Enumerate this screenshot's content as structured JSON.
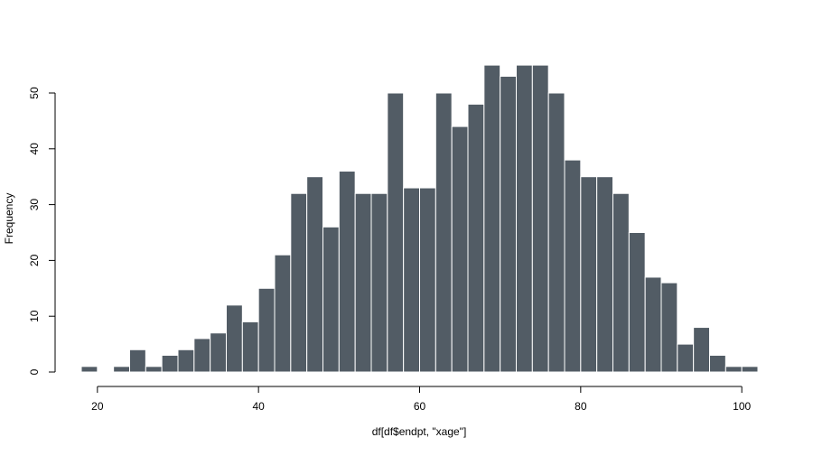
{
  "chart_data": {
    "type": "bar",
    "title": "",
    "xlabel": "df[df$endpt, \"xage\"]",
    "ylabel": "Frequency",
    "bin_width": 2,
    "bin_start": 18,
    "values": [
      1,
      0,
      1,
      4,
      1,
      3,
      4,
      6,
      7,
      12,
      9,
      15,
      21,
      32,
      35,
      26,
      36,
      32,
      32,
      50,
      33,
      33,
      50,
      44,
      48,
      55,
      53,
      55,
      55,
      50,
      38,
      35,
      35,
      32,
      25,
      17,
      16,
      5,
      8,
      3,
      1,
      1
    ],
    "xlim": [
      18,
      102
    ],
    "ylim": [
      0,
      55
    ],
    "x_ticks": [
      20,
      40,
      60,
      80,
      100
    ],
    "y_ticks": [
      0,
      10,
      20,
      30,
      40,
      50
    ],
    "grid": false,
    "legend": "none",
    "bar_color": "#525c65",
    "bar_border_color": "#ffffff"
  }
}
